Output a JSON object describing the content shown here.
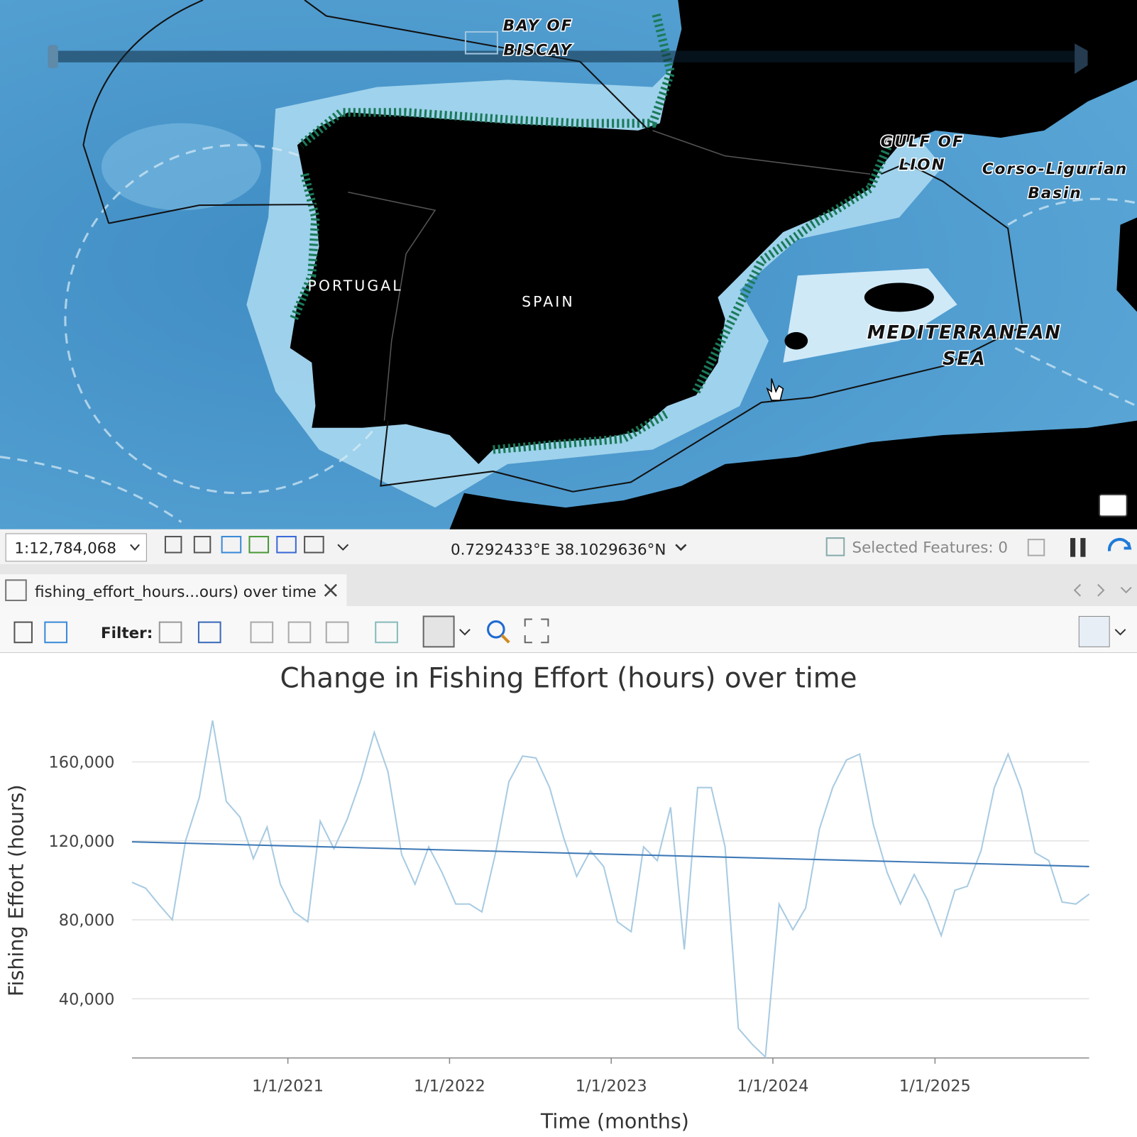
{
  "map": {
    "labels": [
      {
        "lines": [
          "BAY OF",
          "BISCAY"
        ]
      },
      {
        "lines": [
          "GULF OF",
          "LION"
        ]
      },
      {
        "lines": [
          "Corso-Ligurian",
          "Basin"
        ]
      },
      {
        "lines": [
          "PORTUGAL"
        ]
      },
      {
        "lines": [
          "SPAIN"
        ]
      },
      {
        "lines": [
          "MEDITERRANEAN",
          "SEA"
        ]
      }
    ]
  },
  "status_bar": {
    "scale": "1:12,784,068",
    "coordinates": "0.7292433°E 38.1029636°N",
    "selected_features": "Selected Features: 0"
  },
  "tab": {
    "title": "fishing_effort_hours...ours) over time"
  },
  "toolbar": {
    "filter_label": "Filter:"
  },
  "chart_data": {
    "type": "line",
    "title": "Change in Fishing Effort (hours) over time",
    "x_label": "Time (months)",
    "y_label": "Fishing Effort (hours)",
    "x": [
      "2020-01-15",
      "2020-02-15",
      "2020-03-15",
      "2020-04-15",
      "2020-05-15",
      "2020-06-15",
      "2020-07-15",
      "2020-08-15",
      "2020-09-15",
      "2020-10-15",
      "2020-11-15",
      "2020-12-15",
      "2021-01-15",
      "2021-02-15",
      "2021-03-15",
      "2021-04-15",
      "2021-05-15",
      "2021-06-15",
      "2021-07-15",
      "2021-08-15",
      "2021-09-15",
      "2021-10-15",
      "2021-11-15",
      "2021-12-15",
      "2022-01-15",
      "2022-02-15",
      "2022-03-15",
      "2022-04-15",
      "2022-05-15",
      "2022-06-15",
      "2022-07-15",
      "2022-08-15",
      "2022-09-15",
      "2022-10-15",
      "2022-11-15",
      "2022-12-15",
      "2023-01-15",
      "2023-02-15",
      "2023-03-15",
      "2023-04-15",
      "2023-05-15",
      "2023-06-15",
      "2023-07-15",
      "2023-08-15",
      "2023-09-15",
      "2023-10-15",
      "2023-11-15",
      "2023-12-15",
      "2024-01-15",
      "2024-02-15",
      "2024-03-15",
      "2024-04-15",
      "2024-05-15",
      "2024-06-15",
      "2024-07-15",
      "2024-08-15",
      "2024-09-15",
      "2024-10-15",
      "2024-11-15",
      "2024-12-15",
      "2025-01-15",
      "2025-02-15",
      "2025-03-15",
      "2025-04-15",
      "2025-05-15",
      "2025-06-15",
      "2025-07-15",
      "2025-08-15",
      "2025-09-15",
      "2025-10-15",
      "2025-11-15",
      "2025-12-15"
    ],
    "series": [
      {
        "color": "#a8cbe2",
        "values": [
          99000,
          96000,
          88000,
          80000,
          120000,
          142000,
          181000,
          140000,
          132000,
          111000,
          127000,
          98000,
          84000,
          79000,
          130000,
          116000,
          131000,
          151000,
          175000,
          155000,
          113000,
          98000,
          117000,
          104000,
          88000,
          88000,
          84000,
          114000,
          150000,
          163000,
          162000,
          147000,
          122000,
          102000,
          115000,
          107000,
          79000,
          74000,
          117000,
          110000,
          137000,
          65000,
          147000,
          147000,
          117000,
          25000,
          17000,
          10500,
          88000,
          75000,
          86000,
          126000,
          147000,
          161000,
          164000,
          128000,
          104000,
          88000,
          103000,
          90000,
          72000,
          95000,
          97000,
          115000,
          147000,
          164000,
          146000,
          114000,
          110000,
          89000,
          88000,
          93000
        ]
      }
    ],
    "trendline": {
      "color": "#3d78b6",
      "values": [
        119500,
        107000
      ]
    },
    "xlim": [
      "2020-01-15",
      "2025-12-15"
    ],
    "xticks": [
      {
        "value": "2021-01-01",
        "label": "1/1/2021"
      },
      {
        "value": "2022-01-01",
        "label": "1/1/2022"
      },
      {
        "value": "2023-01-01",
        "label": "1/1/2023"
      },
      {
        "value": "2024-01-01",
        "label": "1/1/2024"
      },
      {
        "value": "2025-01-01",
        "label": "1/1/2025"
      }
    ],
    "ylim": [
      10000,
      186000
    ],
    "yticks": [
      {
        "value": 40000,
        "label": "40,000"
      },
      {
        "value": 80000,
        "label": "80,000"
      },
      {
        "value": 120000,
        "label": "120,000"
      },
      {
        "value": 160000,
        "label": "160,000"
      }
    ],
    "grid": true
  }
}
